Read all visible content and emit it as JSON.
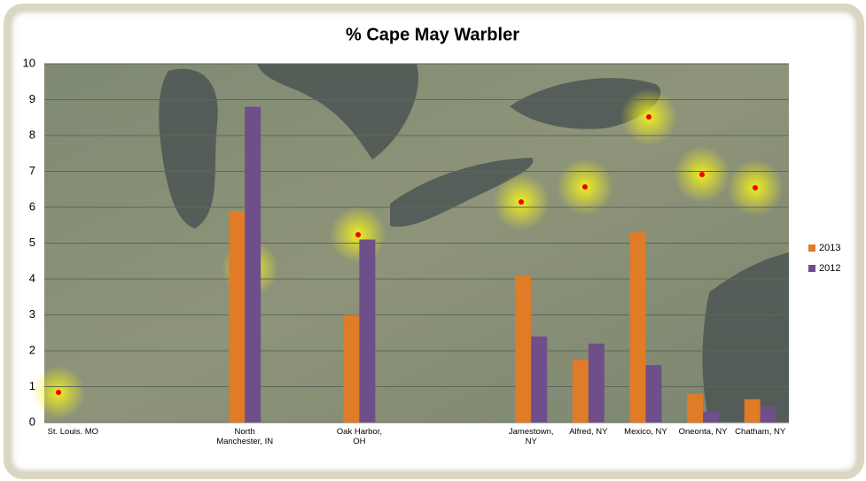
{
  "chart_data": {
    "type": "bar",
    "title": "% Cape May Warbler",
    "categories": [
      "St. Louis. MO",
      null,
      null,
      "North Manchester, IN",
      null,
      "Oak Harbor, OH",
      null,
      null,
      "Jamestown, NY",
      "Alfred, NY",
      "Mexico, NY",
      "Oneonta, NY",
      "Chatham, NY"
    ],
    "series": [
      {
        "name": "2013",
        "color": "#e07b27",
        "values": [
          null,
          null,
          null,
          5.9,
          null,
          3.0,
          null,
          null,
          4.1,
          1.75,
          5.3,
          0.8,
          0.65
        ]
      },
      {
        "name": "2012",
        "color": "#6e4f8a",
        "values": [
          null,
          null,
          null,
          8.8,
          null,
          5.1,
          null,
          null,
          2.4,
          2.2,
          1.6,
          0.3,
          0.45
        ]
      }
    ],
    "ylim": [
      0,
      10
    ],
    "yticks": [
      0,
      1,
      2,
      3,
      4,
      5,
      6,
      7,
      8,
      9,
      10
    ],
    "grid": true,
    "legend": "right"
  }
}
